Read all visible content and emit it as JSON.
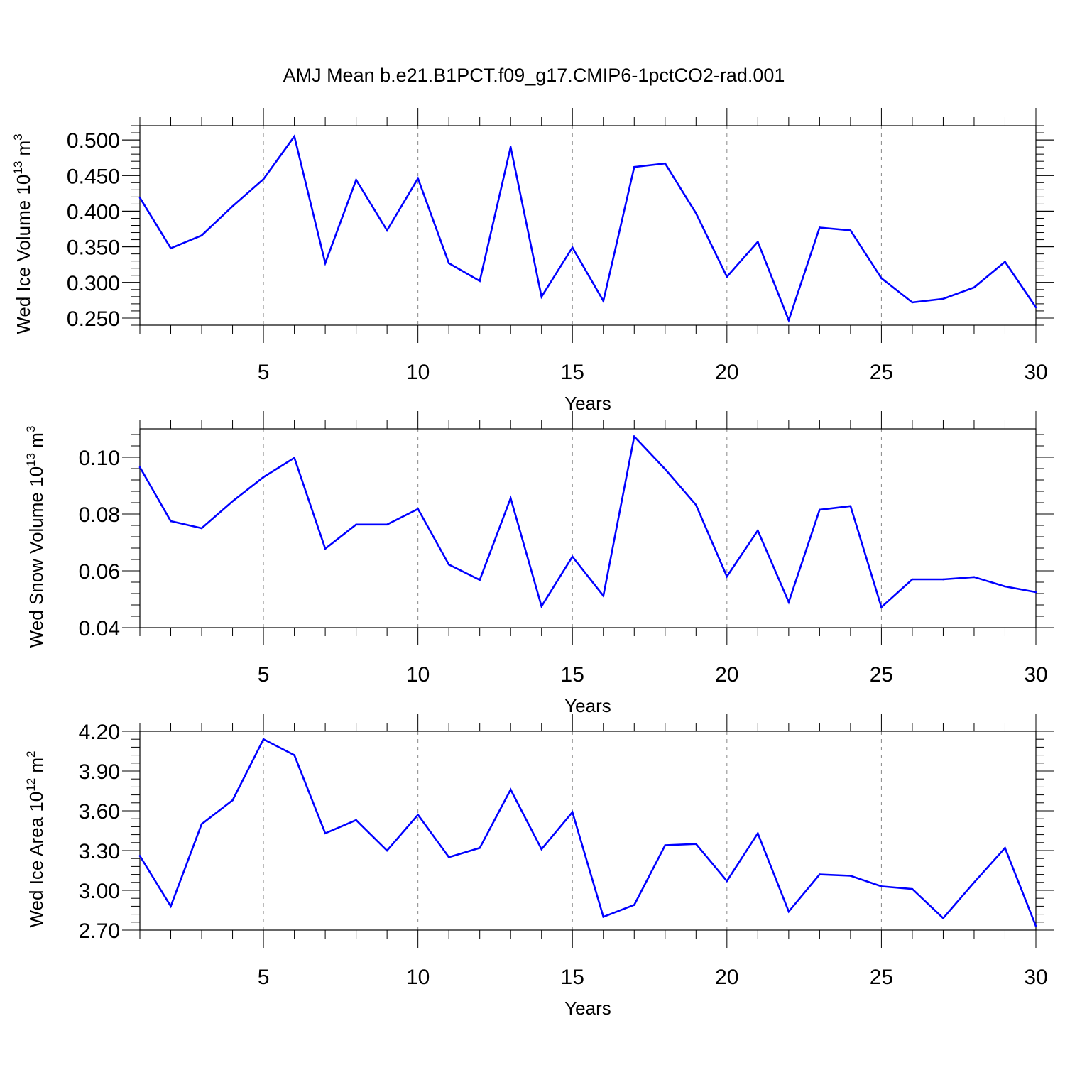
{
  "title": "AMJ Mean b.e21.B1PCT.f09_g17.CMIP6-1pctCO2-rad.001",
  "colors": {
    "line": "#0000ff",
    "axis": "#000000",
    "grid": "#888888"
  },
  "chart_data": [
    {
      "type": "line",
      "ylabel_main": "Wed Ice Volume 10",
      "ylabel_exp": "13",
      "ylabel_tail": " m",
      "ylabel_unit_exp": "3",
      "xlabel": "Years",
      "xlim": [
        1,
        30
      ],
      "ylim": [
        0.24,
        0.52
      ],
      "yticks": [
        0.25,
        0.3,
        0.35,
        0.4,
        0.45,
        0.5
      ],
      "ytick_labels": [
        "0.250",
        "0.300",
        "0.350",
        "0.400",
        "0.450",
        "0.500"
      ],
      "xticks": [
        5,
        10,
        15,
        20,
        25,
        30
      ],
      "xtick_labels": [
        "5",
        "10",
        "15",
        "20",
        "25",
        "30"
      ],
      "x": [
        1,
        2,
        3,
        4,
        5,
        6,
        7,
        8,
        9,
        10,
        11,
        12,
        13,
        14,
        15,
        16,
        17,
        18,
        19,
        20,
        21,
        22,
        23,
        24,
        25,
        26,
        27,
        28,
        29,
        30
      ],
      "values": [
        0.419,
        0.348,
        0.366,
        0.407,
        0.445,
        0.505,
        0.327,
        0.444,
        0.373,
        0.446,
        0.327,
        0.302,
        0.49,
        0.28,
        0.349,
        0.274,
        0.462,
        0.467,
        0.397,
        0.308,
        0.357,
        0.247,
        0.377,
        0.373,
        0.306,
        0.272,
        0.277,
        0.293,
        0.329,
        0.265
      ]
    },
    {
      "type": "line",
      "ylabel_main": "Wed Snow Volume 10",
      "ylabel_exp": "13",
      "ylabel_tail": " m",
      "ylabel_unit_exp": "3",
      "xlabel": "Years",
      "xlim": [
        1,
        30
      ],
      "ylim": [
        0.04,
        0.11
      ],
      "yticks": [
        0.04,
        0.06,
        0.08,
        0.1
      ],
      "ytick_labels": [
        "0.04",
        "0.06",
        "0.08",
        "0.10"
      ],
      "xticks": [
        5,
        10,
        15,
        20,
        25,
        30
      ],
      "xtick_labels": [
        "5",
        "10",
        "15",
        "20",
        "25",
        "30"
      ],
      "x": [
        1,
        2,
        3,
        4,
        5,
        6,
        7,
        8,
        9,
        10,
        11,
        12,
        13,
        14,
        15,
        16,
        17,
        18,
        19,
        20,
        21,
        22,
        23,
        24,
        25,
        26,
        27,
        28,
        29,
        30
      ],
      "values": [
        0.0965,
        0.0775,
        0.075,
        0.0845,
        0.093,
        0.0998,
        0.0678,
        0.0763,
        0.0763,
        0.0818,
        0.0622,
        0.0568,
        0.0856,
        0.0475,
        0.065,
        0.0512,
        0.1073,
        0.0958,
        0.0832,
        0.058,
        0.0742,
        0.049,
        0.0815,
        0.0828,
        0.0472,
        0.057,
        0.057,
        0.0578,
        0.0545,
        0.0525
      ]
    },
    {
      "type": "line",
      "ylabel_main": "Wed Ice Area 10",
      "ylabel_exp": "12",
      "ylabel_tail": " m",
      "ylabel_unit_exp": "2",
      "xlabel": "Years",
      "xlim": [
        1,
        30
      ],
      "ylim": [
        2.7,
        4.2
      ],
      "yticks": [
        2.7,
        3.0,
        3.3,
        3.6,
        3.9,
        4.2
      ],
      "ytick_labels": [
        "2.70",
        "3.00",
        "3.30",
        "3.60",
        "3.90",
        "4.20"
      ],
      "xticks": [
        5,
        10,
        15,
        20,
        25,
        30
      ],
      "xtick_labels": [
        "5",
        "10",
        "15",
        "20",
        "25",
        "30"
      ],
      "x": [
        1,
        2,
        3,
        4,
        5,
        6,
        7,
        8,
        9,
        10,
        11,
        12,
        13,
        14,
        15,
        16,
        17,
        18,
        19,
        20,
        21,
        22,
        23,
        24,
        25,
        26,
        27,
        28,
        29,
        30
      ],
      "values": [
        3.26,
        2.88,
        3.5,
        3.68,
        4.14,
        4.02,
        3.43,
        3.53,
        3.3,
        3.57,
        3.25,
        3.32,
        3.76,
        3.31,
        3.59,
        2.8,
        2.89,
        3.34,
        3.35,
        3.07,
        3.43,
        2.84,
        3.12,
        3.11,
        3.03,
        3.01,
        2.79,
        3.06,
        3.32,
        2.73
      ]
    }
  ]
}
